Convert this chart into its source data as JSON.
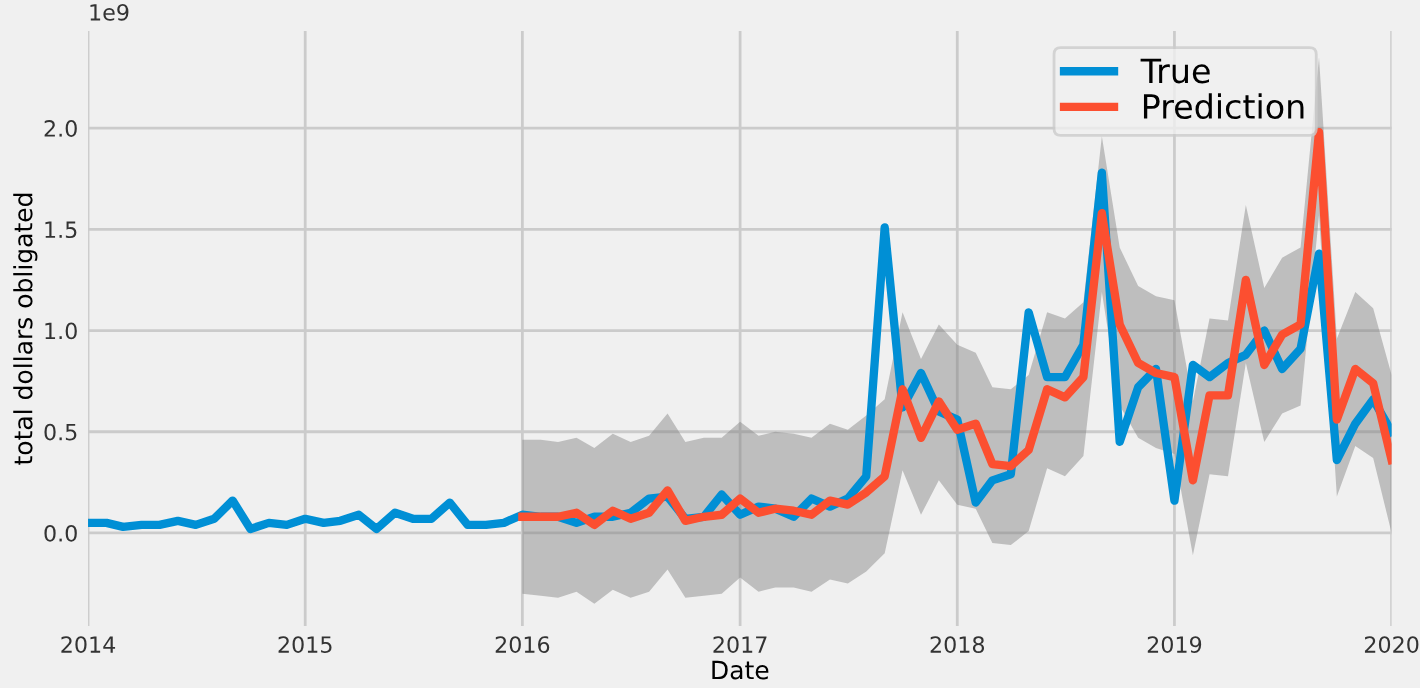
{
  "chart_data": {
    "type": "line",
    "xlabel": "Date",
    "ylabel": "total dollars obligated",
    "annotations": [
      "1e9"
    ],
    "xlim": [
      "2014",
      "2020"
    ],
    "xticks": [
      "2014",
      "2015",
      "2016",
      "2017",
      "2018",
      "2019",
      "2020"
    ],
    "ylim": [
      -0.46,
      2.48
    ],
    "yticks": [
      {
        "value": 0,
        "label": "0.0"
      },
      {
        "value": 0.5,
        "label": "0.5"
      },
      {
        "value": 1,
        "label": "1.0"
      },
      {
        "value": 1.5,
        "label": "1.5"
      },
      {
        "value": 2,
        "label": "2.0"
      }
    ],
    "grid": true,
    "legend": "top right",
    "marker": "none",
    "line_style": "solid",
    "series": [
      {
        "name": "True",
        "color": "#008fd5",
        "x": [
          "2014-01",
          "2014-02",
          "2014-03",
          "2014-04",
          "2014-05",
          "2014-06",
          "2014-07",
          "2014-08",
          "2014-09",
          "2014-10",
          "2014-11",
          "2014-12",
          "2015-01",
          "2015-02",
          "2015-03",
          "2015-04",
          "2015-05",
          "2015-06",
          "2015-07",
          "2015-08",
          "2015-09",
          "2015-10",
          "2015-11",
          "2015-12",
          "2016-01",
          "2016-02",
          "2016-03",
          "2016-04",
          "2016-05",
          "2016-06",
          "2016-07",
          "2016-08",
          "2016-09",
          "2016-10",
          "2016-11",
          "2016-12",
          "2017-01",
          "2017-02",
          "2017-03",
          "2017-04",
          "2017-05",
          "2017-06",
          "2017-07",
          "2017-08",
          "2017-09",
          "2017-10",
          "2017-11",
          "2017-12",
          "2018-01",
          "2018-02",
          "2018-03",
          "2018-04",
          "2018-05",
          "2018-06",
          "2018-07",
          "2018-08",
          "2018-09",
          "2018-10",
          "2018-11",
          "2018-12",
          "2019-01",
          "2019-02",
          "2019-03",
          "2019-04",
          "2019-05",
          "2019-06",
          "2019-07",
          "2019-08",
          "2019-09",
          "2019-10",
          "2019-11",
          "2019-12",
          "2020-01"
        ],
        "values": [
          0.05,
          0.05,
          0.03,
          0.04,
          0.04,
          0.06,
          0.04,
          0.07,
          0.16,
          0.02,
          0.05,
          0.04,
          0.07,
          0.05,
          0.06,
          0.09,
          0.02,
          0.1,
          0.07,
          0.07,
          0.15,
          0.04,
          0.04,
          0.05,
          0.09,
          0.08,
          0.08,
          0.05,
          0.08,
          0.08,
          0.1,
          0.17,
          0.18,
          0.07,
          0.08,
          0.19,
          0.09,
          0.13,
          0.12,
          0.08,
          0.17,
          0.13,
          0.17,
          0.28,
          1.51,
          0.62,
          0.79,
          0.6,
          0.56,
          0.15,
          0.26,
          0.29,
          1.09,
          0.77,
          0.77,
          0.93,
          1.78,
          0.45,
          0.72,
          0.81,
          0.16,
          0.83,
          0.77,
          0.84,
          0.88,
          1.0,
          0.81,
          0.91,
          1.38,
          0.36,
          0.54,
          0.66,
          0.5
        ]
      },
      {
        "name": "Prediction",
        "color": "#fc4f30",
        "x": [
          "2016-01",
          "2016-02",
          "2016-03",
          "2016-04",
          "2016-05",
          "2016-06",
          "2016-07",
          "2016-08",
          "2016-09",
          "2016-10",
          "2016-11",
          "2016-12",
          "2017-01",
          "2017-02",
          "2017-03",
          "2017-04",
          "2017-05",
          "2017-06",
          "2017-07",
          "2017-08",
          "2017-09",
          "2017-10",
          "2017-11",
          "2017-12",
          "2018-01",
          "2018-02",
          "2018-03",
          "2018-04",
          "2018-05",
          "2018-06",
          "2018-07",
          "2018-08",
          "2018-09",
          "2018-10",
          "2018-11",
          "2018-12",
          "2019-01",
          "2019-02",
          "2019-03",
          "2019-04",
          "2019-05",
          "2019-06",
          "2019-07",
          "2019-08",
          "2019-09",
          "2019-10",
          "2019-11",
          "2019-12",
          "2020-01"
        ],
        "values": [
          0.08,
          0.08,
          0.08,
          0.1,
          0.04,
          0.11,
          0.07,
          0.1,
          0.21,
          0.06,
          0.08,
          0.09,
          0.17,
          0.1,
          0.12,
          0.11,
          0.09,
          0.16,
          0.14,
          0.2,
          0.28,
          0.71,
          0.47,
          0.65,
          0.51,
          0.54,
          0.34,
          0.33,
          0.41,
          0.71,
          0.67,
          0.77,
          1.58,
          1.03,
          0.84,
          0.79,
          0.77,
          0.26,
          0.68,
          0.68,
          1.25,
          0.83,
          0.98,
          1.03,
          1.98,
          0.56,
          0.81,
          0.74,
          0.36
        ],
        "upper": [
          0.46,
          0.46,
          0.45,
          0.47,
          0.42,
          0.49,
          0.45,
          0.48,
          0.59,
          0.45,
          0.47,
          0.47,
          0.55,
          0.48,
          0.5,
          0.49,
          0.47,
          0.54,
          0.51,
          0.58,
          0.66,
          1.09,
          0.86,
          1.03,
          0.93,
          0.89,
          0.72,
          0.71,
          0.78,
          1.09,
          1.06,
          1.14,
          1.96,
          1.41,
          1.22,
          1.17,
          1.15,
          0.65,
          1.06,
          1.05,
          1.62,
          1.21,
          1.36,
          1.41,
          2.35,
          0.96,
          1.19,
          1.11,
          0.78
        ],
        "lower": [
          -0.3,
          -0.31,
          -0.32,
          -0.29,
          -0.35,
          -0.28,
          -0.32,
          -0.29,
          -0.18,
          -0.32,
          -0.31,
          -0.3,
          -0.22,
          -0.29,
          -0.27,
          -0.27,
          -0.29,
          -0.23,
          -0.25,
          -0.19,
          -0.1,
          0.31,
          0.09,
          0.26,
          0.14,
          0.12,
          -0.05,
          -0.06,
          0.01,
          0.32,
          0.28,
          0.38,
          1.19,
          0.63,
          0.47,
          0.42,
          0.39,
          -0.11,
          0.29,
          0.28,
          0.84,
          0.45,
          0.59,
          0.63,
          1.57,
          0.18,
          0.43,
          0.37,
          0.0
        ]
      }
    ]
  }
}
